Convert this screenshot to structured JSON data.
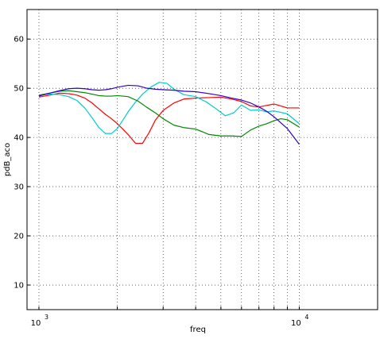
{
  "chart_data": {
    "type": "line",
    "title": "",
    "xlabel": "freq",
    "ylabel": "pdB_aco",
    "xscale": "log",
    "xlim": [
      900,
      20000
    ],
    "ylim": [
      5,
      66
    ],
    "yticks": [
      10,
      20,
      30,
      40,
      50,
      60
    ],
    "xticks": [
      {
        "value": 1000,
        "base": "10",
        "exp": "3"
      },
      {
        "value": 10000,
        "base": "10",
        "exp": "4"
      }
    ],
    "grid": true,
    "series": [
      {
        "color": "#ff0000",
        "x": [
          1000,
          1100,
          1200,
          1300,
          1400,
          1500,
          1600,
          1700,
          1800,
          1900,
          2000,
          2100,
          2200,
          2350,
          2500,
          2650,
          2800,
          3000,
          3300,
          3600,
          4000,
          4500,
          5000,
          5500,
          6000,
          6500,
          7000,
          7500,
          8000,
          9000,
          10000
        ],
        "values": [
          48.2,
          48.6,
          49.0,
          48.9,
          48.6,
          48.0,
          47.0,
          45.8,
          44.7,
          43.8,
          42.8,
          41.7,
          40.6,
          38.8,
          38.8,
          41.0,
          43.5,
          45.5,
          47.0,
          47.8,
          48.0,
          48.1,
          48.2,
          47.8,
          47.3,
          46.4,
          46.2,
          46.5,
          46.8,
          46.0,
          46.0
        ]
      },
      {
        "color": "#00cccc",
        "x": [
          1000,
          1100,
          1200,
          1300,
          1400,
          1500,
          1600,
          1700,
          1800,
          1900,
          2000,
          2100,
          2200,
          2350,
          2500,
          2700,
          2900,
          3100,
          3300,
          3600,
          4000,
          4400,
          4800,
          5200,
          5600,
          6000,
          6500,
          7000,
          7500,
          8000,
          9000,
          10000
        ],
        "values": [
          48.6,
          48.8,
          48.7,
          48.3,
          47.5,
          46.0,
          44.0,
          42.0,
          40.8,
          40.8,
          41.8,
          43.5,
          45.2,
          47.2,
          48.8,
          50.3,
          51.2,
          51.0,
          49.8,
          48.7,
          48.3,
          47.2,
          45.8,
          44.4,
          45.0,
          46.6,
          45.5,
          45.6,
          45.2,
          45.4,
          44.8,
          42.8
        ]
      },
      {
        "color": "#008800",
        "x": [
          1000,
          1100,
          1200,
          1300,
          1400,
          1500,
          1600,
          1700,
          1800,
          1900,
          2000,
          2200,
          2400,
          2600,
          2800,
          3000,
          3300,
          3600,
          4000,
          4500,
          5000,
          5500,
          6000,
          6500,
          7000,
          7500,
          8000,
          8500,
          9000,
          10000
        ],
        "values": [
          48.6,
          49.0,
          49.4,
          49.5,
          49.3,
          49.1,
          48.8,
          48.5,
          48.4,
          48.4,
          48.5,
          48.3,
          47.4,
          46.1,
          45.0,
          43.8,
          42.5,
          42.0,
          41.7,
          40.6,
          40.3,
          40.3,
          40.2,
          41.5,
          42.3,
          42.8,
          43.4,
          43.8,
          43.6,
          42.1
        ]
      },
      {
        "color": "#3300cc",
        "x": [
          1000,
          1100,
          1200,
          1300,
          1400,
          1500,
          1600,
          1700,
          1800,
          1900,
          2000,
          2200,
          2400,
          2600,
          2800,
          3000,
          3300,
          3600,
          4000,
          4500,
          5000,
          5500,
          6000,
          6500,
          7000,
          7500,
          8000,
          9000,
          10000
        ],
        "values": [
          48.4,
          49.0,
          49.5,
          49.9,
          50.0,
          49.9,
          49.7,
          49.6,
          49.7,
          49.9,
          50.2,
          50.6,
          50.5,
          50.0,
          49.8,
          49.7,
          49.6,
          49.4,
          49.3,
          48.9,
          48.5,
          48.0,
          47.6,
          47.0,
          46.2,
          45.3,
          44.2,
          41.8,
          38.6
        ]
      }
    ]
  }
}
